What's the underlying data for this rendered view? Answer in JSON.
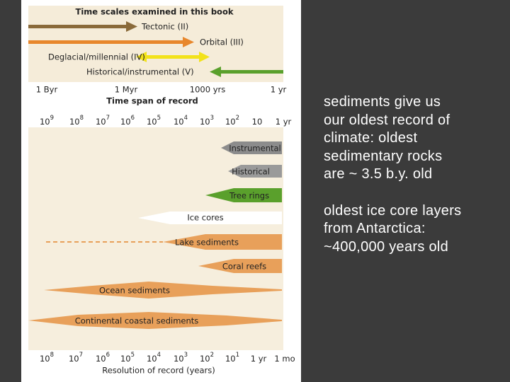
{
  "figure": {
    "title": "Time scales examined in this book",
    "scales": [
      "Tectonic (II)",
      "Orbital (III)",
      "Deglacial/millennial (IV)",
      "Historical/instrumental (V)"
    ],
    "span_ticks": [
      "1 Byr",
      "1 Myr",
      "1000 yrs",
      "1 yr"
    ],
    "span_label": "Time span of record",
    "top_ticks": [
      {
        "base": "10",
        "exp": "9"
      },
      {
        "base": "10",
        "exp": "8"
      },
      {
        "base": "10",
        "exp": "7"
      },
      {
        "base": "10",
        "exp": "6"
      },
      {
        "base": "10",
        "exp": "5"
      },
      {
        "base": "10",
        "exp": "4"
      },
      {
        "base": "10",
        "exp": "3"
      },
      {
        "base": "10",
        "exp": "2"
      },
      {
        "base": "10"
      },
      {
        "base": "1 yr"
      }
    ],
    "proxies": [
      "Instrumental",
      "Historical",
      "Tree rings",
      "Ice cores",
      "Lake sediments",
      "Coral reefs",
      "Ocean sediments",
      "Continental coastal sediments"
    ],
    "bottom_ticks": [
      {
        "base": "10",
        "exp": "8"
      },
      {
        "base": "10",
        "exp": "7"
      },
      {
        "base": "10",
        "exp": "6"
      },
      {
        "base": "10",
        "exp": "5"
      },
      {
        "base": "10",
        "exp": "4"
      },
      {
        "base": "10",
        "exp": "3"
      },
      {
        "base": "10",
        "exp": "2"
      },
      {
        "base": "10",
        "exp": "1"
      },
      {
        "base": "1 yr"
      },
      {
        "base": "1 mo"
      }
    ],
    "resolution_label": "Resolution of record (years)"
  },
  "text": {
    "paragraphs": [
      [
        "sediments give us",
        "our oldest record of",
        "climate:  oldest",
        "sedimentary rocks",
        "are ~ 3.5 b.y. old"
      ],
      [
        "oldest ice core layers",
        "from Antarctica:",
        "~400,000 years old"
      ]
    ]
  }
}
